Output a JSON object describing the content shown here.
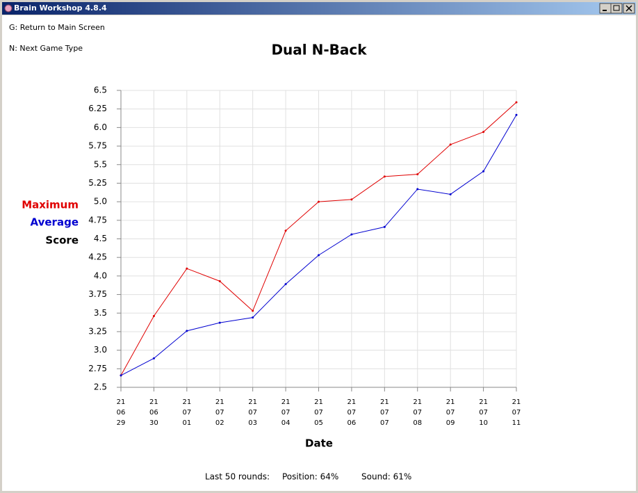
{
  "window_title": "Brain Workshop 4.8.4",
  "menu": [
    "G: Return to Main Screen",
    "N: Next Game Type"
  ],
  "footer": {
    "rounds": "Last 50 rounds:",
    "position": "Position: 64%",
    "sound": "Sound: 61%"
  },
  "chart_data": {
    "type": "line",
    "title": "Dual N-Back",
    "x_label": "Date",
    "y_label": "Score",
    "categories": [
      [
        "21",
        "06",
        "29"
      ],
      [
        "21",
        "06",
        "30"
      ],
      [
        "21",
        "07",
        "01"
      ],
      [
        "21",
        "07",
        "02"
      ],
      [
        "21",
        "07",
        "03"
      ],
      [
        "21",
        "07",
        "04"
      ],
      [
        "21",
        "07",
        "05"
      ],
      [
        "21",
        "07",
        "06"
      ],
      [
        "21",
        "07",
        "07"
      ],
      [
        "21",
        "07",
        "08"
      ],
      [
        "21",
        "07",
        "09"
      ],
      [
        "21",
        "07",
        "10"
      ],
      [
        "21",
        "07",
        "11"
      ]
    ],
    "series": [
      {
        "name": "Maximum",
        "color": "#e00000",
        "values": [
          2.66,
          3.46,
          4.1,
          3.93,
          3.53,
          4.61,
          5.0,
          5.03,
          5.34,
          5.37,
          5.77,
          5.94,
          6.34
        ]
      },
      {
        "name": "Average",
        "color": "#0000d0",
        "values": [
          2.66,
          2.89,
          3.26,
          3.37,
          3.44,
          3.89,
          4.28,
          4.56,
          4.66,
          5.17,
          5.1,
          5.41,
          6.17
        ]
      }
    ],
    "ylim": [
      2.5,
      6.5
    ],
    "yticks": [
      2.5,
      2.75,
      {
        "value": 3,
        "label": "3.0"
      },
      3.25,
      3.5,
      3.75,
      {
        "value": 4,
        "label": "4.0"
      },
      4.25,
      4.5,
      4.75,
      {
        "value": 5,
        "label": "5.0"
      },
      5.25,
      5.5,
      5.75,
      {
        "value": 6,
        "label": "6.0"
      },
      6.25,
      6.5
    ],
    "grid": true
  }
}
